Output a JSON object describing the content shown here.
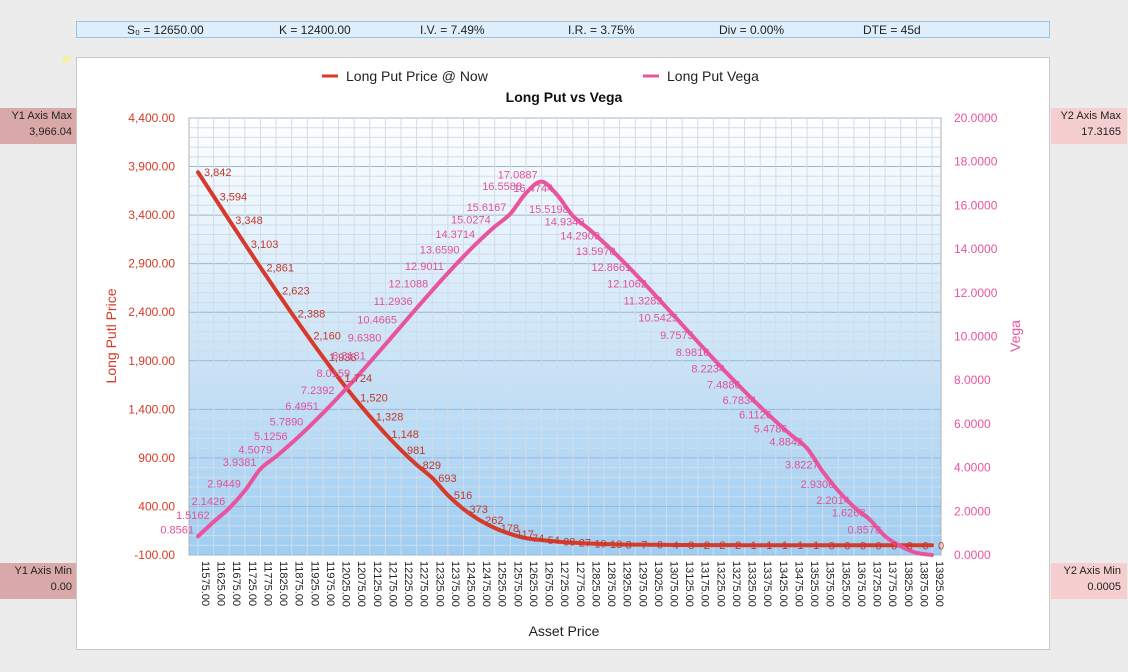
{
  "params": {
    "s0": "S₀ = 12650.00",
    "k": "K = 12400.00",
    "iv": "I.V. = 7.49%",
    "ir": "I.R. = 3.75%",
    "div": "Div = 0.00%",
    "dte": "DTE = 45d"
  },
  "side": {
    "y1max_label": "Y1 Axis Max",
    "y1max_value": "3,966.04",
    "y1min_label": "Y1 Axis Min",
    "y1min_value": "0.00",
    "y2max_label": "Y2 Axis Max",
    "y2max_value": "17.3165",
    "y2min_label": "Y2 Axis Min",
    "y2min_value": "0.0005"
  },
  "colors": {
    "price": "#d63a2a",
    "vega": "#e8559e",
    "plot_top": "#ffffff",
    "plot_bottom": "#9fcdf2"
  },
  "chart_data": {
    "type": "line",
    "title": "Long Put vs Vega",
    "xlabel": "Asset Price",
    "ylabel": "Long Putl Price",
    "y2label": "Vega",
    "ylim": [
      -100,
      4400
    ],
    "y2lim": [
      0,
      20
    ],
    "yticks": [
      "-100.00",
      "400.00",
      "900.00",
      "1,400.00",
      "1,900.00",
      "2,400.00",
      "2,900.00",
      "3,400.00",
      "3,900.00",
      "4,400.00"
    ],
    "y2ticks": [
      "0.0000",
      "2.0000",
      "4.0000",
      "6.0000",
      "8.0000",
      "10.0000",
      "12.0000",
      "14.0000",
      "16.0000",
      "18.0000",
      "20.0000"
    ],
    "xticks": [
      "11575.00",
      "11625.00",
      "11675.00",
      "11725.00",
      "11775.00",
      "11825.00",
      "11875.00",
      "11925.00",
      "11975.00",
      "12025.00",
      "12075.00",
      "12125.00",
      "12175.00",
      "12225.00",
      "12275.00",
      "12325.00",
      "12375.00",
      "12425.00",
      "12475.00",
      "12525.00",
      "12575.00",
      "12625.00",
      "12675.00",
      "12725.00",
      "12775.00",
      "12825.00",
      "12875.00",
      "12925.00",
      "12975.00",
      "13025.00",
      "13075.00",
      "13125.00",
      "13175.00",
      "13225.00",
      "13275.00",
      "13325.00",
      "13375.00",
      "13425.00",
      "13475.00",
      "13525.00",
      "13575.00",
      "13625.00",
      "13675.00",
      "13725.00",
      "13775.00",
      "13825.00",
      "13875.00",
      "13925.00"
    ],
    "legend": "top",
    "grid": true,
    "series": [
      {
        "name": "Long Put Price @ Now",
        "axis": "y1",
        "x": [
          11575,
          11625,
          11675,
          11725,
          11775,
          11825,
          11875,
          11925,
          11975,
          12025,
          12075,
          12125,
          12175,
          12225,
          12275,
          12325,
          12375,
          12425,
          12475,
          12525,
          12575,
          12625,
          12675,
          12725,
          12775,
          12825,
          12875,
          12925,
          12975,
          13025,
          13075,
          13125,
          13175,
          13225,
          13275,
          13325,
          13375,
          13425,
          13475,
          13525,
          13575,
          13625,
          13675,
          13725,
          13775,
          13825,
          13875,
          13925
        ],
        "values": [
          3842,
          3594,
          3348,
          3103,
          2861,
          2623,
          2388,
          2160,
          1938,
          1724,
          1520,
          1328,
          1148,
          981,
          829,
          693,
          516,
          373,
          262,
          178,
          117,
          74,
          54,
          38,
          27,
          19,
          13,
          8,
          7,
          6,
          4,
          3,
          2,
          2,
          2,
          1,
          1,
          1,
          1,
          1,
          0,
          0,
          0,
          0,
          0,
          0,
          0,
          0
        ],
        "labels": [
          "3,842",
          "3,594",
          "3,348",
          "3,103",
          "2,861",
          "2,623",
          "2,388",
          "2,160",
          "1,938",
          "1,724",
          "1,520",
          "1,328",
          "1,148",
          "981",
          "829",
          "693",
          "516",
          "373",
          "262",
          "178",
          "117",
          "74",
          "54",
          "38",
          "27",
          "19",
          "13",
          "8",
          "7",
          "6",
          "4",
          "3",
          "2",
          "2",
          "2",
          "1",
          "1",
          "1",
          "1",
          "1",
          "0",
          "0",
          "0",
          "0",
          "0",
          "0",
          "0",
          "0"
        ]
      },
      {
        "name": "Long Put Vega",
        "axis": "y2",
        "x": [
          11575,
          11625,
          11675,
          11725,
          11775,
          11825,
          11875,
          11925,
          11975,
          12025,
          12075,
          12125,
          12175,
          12225,
          12275,
          12325,
          12375,
          12425,
          12475,
          12525,
          12575,
          12625,
          12675,
          12725,
          12775,
          12825,
          12875,
          12925,
          12975,
          13025,
          13075,
          13125,
          13175,
          13225,
          13275,
          13325,
          13375,
          13425,
          13475,
          13525,
          13575,
          13625,
          13675,
          13725,
          13775,
          13825,
          13875,
          13925
        ],
        "values": [
          0.8561,
          1.5162,
          2.1426,
          2.9449,
          3.9381,
          4.5079,
          5.1256,
          5.789,
          6.4951,
          7.2392,
          8.0159,
          8.8181,
          9.638,
          10.4665,
          11.2936,
          12.1088,
          12.9011,
          13.659,
          14.3714,
          15.0274,
          15.6167,
          16.5588,
          17.0887,
          16.4744,
          15.5198,
          14.9349,
          14.2909,
          13.5978,
          12.8661,
          12.1062,
          11.3283,
          10.5425,
          9.7575,
          8.9816,
          8.2234,
          7.4886,
          6.7834,
          6.1126,
          5.4786,
          4.8842,
          3.8227,
          2.9306,
          2.2014,
          1.6268,
          0.8578,
          0.4,
          0.1,
          0.0005
        ],
        "labels": [
          "0.8561",
          "1.5162",
          "2.1426",
          "2.9449",
          "3.9381",
          "4.5079",
          "5.1256",
          "5.7890",
          "6.4951",
          "7.2392",
          "8.0159",
          "8.8181",
          "9.6380",
          "10.4665",
          "11.2936",
          "12.1088",
          "12.9011",
          "13.6590",
          "14.3714",
          "15.0274",
          "15.6167",
          "16.5588",
          "17.0887",
          "16.4744",
          "15.5198",
          "14.9349",
          "14.2909",
          "13.5978",
          "12.8661",
          "12.1062",
          "11.3283",
          "10.5425",
          "9.7575",
          "8.9816",
          "8.2234",
          "7.4886",
          "6.7834",
          "6.1126",
          "5.4786",
          "4.8842",
          "3.8227",
          "2.9306",
          "2.2014",
          "1.6268",
          "0.8578",
          "",
          "",
          ""
        ]
      }
    ]
  }
}
